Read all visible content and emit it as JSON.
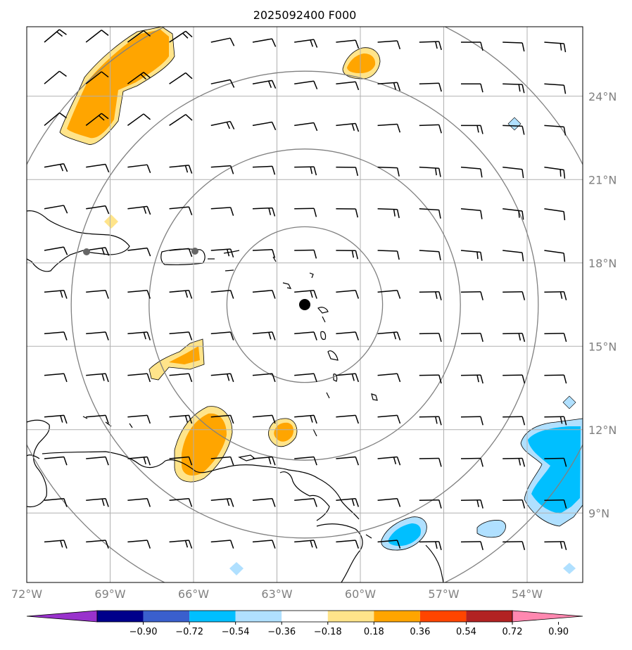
{
  "title": "2025092400 F000",
  "map": {
    "lon_range": [
      -72,
      -52
    ],
    "lat_range": [
      6.5,
      26.5
    ],
    "lon_ticks": [
      {
        "value": -72,
        "label": "72°W"
      },
      {
        "value": -69,
        "label": "69°W"
      },
      {
        "value": -66,
        "label": "66°W"
      },
      {
        "value": -63,
        "label": "63°W"
      },
      {
        "value": -60,
        "label": "60°W"
      },
      {
        "value": -57,
        "label": "57°W"
      },
      {
        "value": -54,
        "label": "54°W"
      }
    ],
    "lat_ticks": [
      {
        "value": 24,
        "label": "24°N"
      },
      {
        "value": 21,
        "label": "21°N"
      },
      {
        "value": 18,
        "label": "18°N"
      },
      {
        "value": 15,
        "label": "15°N"
      },
      {
        "value": 12,
        "label": "12°N"
      },
      {
        "value": 9,
        "label": "9°N"
      }
    ],
    "center": {
      "lon": -62,
      "lat": 16.5
    },
    "range_rings_deg": [
      2.8,
      5.6,
      8.4,
      11.2
    ],
    "grid_lines": true
  },
  "colorbar": {
    "levels": [
      "−0.90",
      "−0.72",
      "−0.54",
      "−0.36",
      "−0.18",
      "0.18",
      "0.36",
      "0.54",
      "0.72",
      "0.90"
    ],
    "colors": [
      "#9932cc",
      "#00008b",
      "#3a5fcd",
      "#00bfff",
      "#b0e0ff",
      "#ffffff",
      "#ffe48a",
      "#ffa500",
      "#ff4500",
      "#b22222",
      "#ff88b0"
    ],
    "extend": "both"
  },
  "colors": {
    "grid": "#b0b0b0",
    "ring": "#808080",
    "coast": "#000000"
  }
}
